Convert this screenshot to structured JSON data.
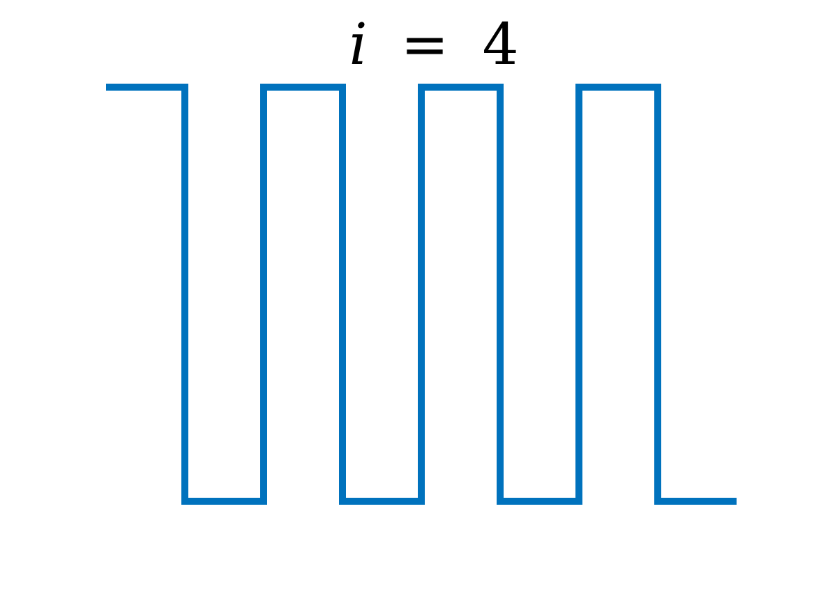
{
  "chart_data": {
    "type": "line",
    "title_var": "i",
    "title_op": "=",
    "title_value": "4",
    "xlabel": "",
    "ylabel": "",
    "grid": false,
    "axes_visible": false,
    "xlim": [
      0,
      8
    ],
    "ylim": [
      0,
      1
    ],
    "series": [
      {
        "color": "#0072BD",
        "step": true,
        "x": [
          0,
          1,
          2,
          3,
          4,
          5,
          6,
          7,
          8
        ],
        "y": [
          1,
          0,
          1,
          0,
          1,
          0,
          1,
          0,
          0
        ]
      }
    ]
  }
}
